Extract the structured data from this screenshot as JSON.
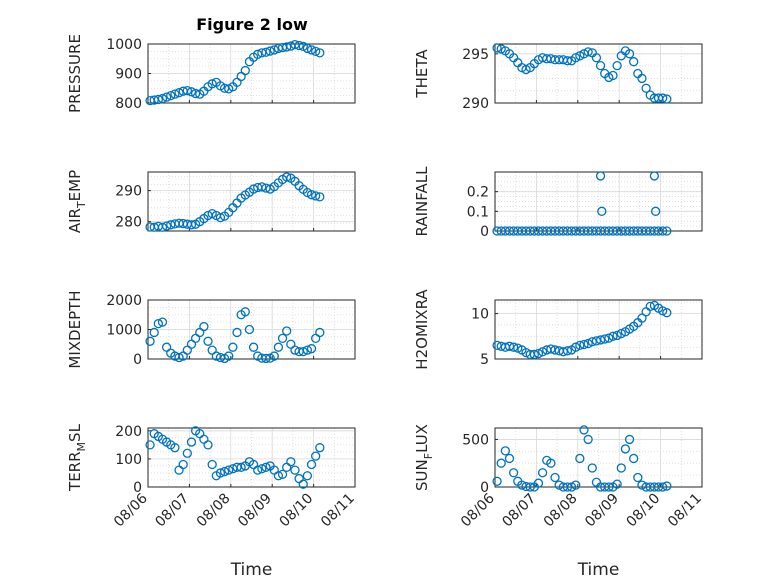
{
  "figure": {
    "title": "Figure 2 low",
    "marker_color": "#0072BD",
    "axis_color": "#262626",
    "grid_color": "#d9d9d9"
  },
  "chart_data": [
    {
      "type": "scatter",
      "title": "Figure 2 low",
      "xlabel": "",
      "ylabel": "PRESSURE",
      "xlim": [
        0,
        5
      ],
      "ylim": [
        800,
        1000
      ],
      "yticks": [
        800,
        900,
        1000
      ],
      "grid": true,
      "x_ticks": [
        0,
        1,
        2,
        3,
        4,
        5
      ],
      "x_tick_labels": [
        "08/06",
        "08/07",
        "08/08",
        "08/09",
        "08/10",
        "08/11"
      ],
      "show_x_tick_labels": false,
      "series": [
        {
          "x": [
            0.05,
            0.15,
            0.25,
            0.35,
            0.45,
            0.55,
            0.65,
            0.75,
            0.85,
            0.95,
            1.05,
            1.15,
            1.25,
            1.35,
            1.45,
            1.55,
            1.65,
            1.75,
            1.85,
            1.95,
            2.05,
            2.15,
            2.25,
            2.35,
            2.45,
            2.55,
            2.65,
            2.75,
            2.85,
            2.95,
            3.05,
            3.15,
            3.25,
            3.35,
            3.45,
            3.55,
            3.65,
            3.75,
            3.85,
            3.95,
            4.05,
            4.15
          ],
          "y": [
            808,
            810,
            812,
            815,
            820,
            825,
            830,
            835,
            840,
            842,
            838,
            832,
            830,
            840,
            855,
            865,
            870,
            858,
            850,
            848,
            855,
            870,
            890,
            910,
            940,
            955,
            965,
            970,
            972,
            976,
            980,
            985,
            988,
            990,
            993,
            998,
            995,
            992,
            985,
            980,
            975,
            970
          ]
        }
      ]
    },
    {
      "type": "scatter",
      "title": "",
      "xlabel": "",
      "ylabel": "THETA",
      "xlim": [
        0,
        5
      ],
      "ylim": [
        290,
        296
      ],
      "yticks": [
        290,
        295
      ],
      "grid": true,
      "x_ticks": [
        0,
        1,
        2,
        3,
        4,
        5
      ],
      "x_tick_labels": [
        "08/06",
        "08/07",
        "08/08",
        "08/09",
        "08/10",
        "08/11"
      ],
      "show_x_tick_labels": false,
      "series": [
        {
          "x": [
            0.05,
            0.15,
            0.25,
            0.35,
            0.45,
            0.55,
            0.65,
            0.75,
            0.85,
            0.95,
            1.05,
            1.15,
            1.25,
            1.35,
            1.45,
            1.55,
            1.65,
            1.75,
            1.85,
            1.95,
            2.05,
            2.15,
            2.25,
            2.35,
            2.45,
            2.55,
            2.65,
            2.75,
            2.85,
            2.95,
            3.05,
            3.15,
            3.25,
            3.35,
            3.45,
            3.55,
            3.65,
            3.75,
            3.85,
            3.95,
            4.05,
            4.15
          ],
          "y": [
            295.6,
            295.5,
            295.3,
            295.0,
            294.6,
            294.1,
            293.6,
            293.4,
            293.6,
            294.0,
            294.4,
            294.6,
            294.5,
            294.5,
            294.4,
            294.4,
            294.4,
            294.3,
            294.3,
            294.6,
            294.8,
            295.0,
            295.2,
            295.1,
            294.6,
            293.8,
            293.0,
            292.6,
            292.8,
            293.8,
            294.8,
            295.3,
            295.0,
            294.2,
            293.0,
            292.5,
            291.5,
            290.8,
            290.5,
            290.5,
            290.5,
            290.4
          ]
        }
      ]
    },
    {
      "type": "scatter",
      "title": "",
      "xlabel": "",
      "ylabel": "AIR_TEMP",
      "xlim": [
        0,
        5
      ],
      "ylim": [
        277,
        296
      ],
      "yticks": [
        280,
        290
      ],
      "grid": true,
      "x_ticks": [
        0,
        1,
        2,
        3,
        4,
        5
      ],
      "x_tick_labels": [
        "08/06",
        "08/07",
        "08/08",
        "08/09",
        "08/10",
        "08/11"
      ],
      "show_x_tick_labels": false,
      "series": [
        {
          "x": [
            0.05,
            0.15,
            0.25,
            0.35,
            0.45,
            0.55,
            0.65,
            0.75,
            0.85,
            0.95,
            1.05,
            1.15,
            1.25,
            1.35,
            1.45,
            1.55,
            1.65,
            1.75,
            1.85,
            1.95,
            2.05,
            2.15,
            2.25,
            2.35,
            2.45,
            2.55,
            2.65,
            2.75,
            2.85,
            2.95,
            3.05,
            3.15,
            3.25,
            3.35,
            3.45,
            3.55,
            3.65,
            3.75,
            3.85,
            3.95,
            4.05,
            4.15
          ],
          "y": [
            278.3,
            278.2,
            278.5,
            278.2,
            278.6,
            279.0,
            279.3,
            279.5,
            279.4,
            279.2,
            279.0,
            279.2,
            280.0,
            281.0,
            282.0,
            282.6,
            282.0,
            281.3,
            281.8,
            283.0,
            284.5,
            286.0,
            287.6,
            288.6,
            289.5,
            290.5,
            291.0,
            291.2,
            290.8,
            290.5,
            291.3,
            292.5,
            293.6,
            294.4,
            294.0,
            293.0,
            291.6,
            290.4,
            289.4,
            288.7,
            288.3,
            288.0
          ]
        }
      ]
    },
    {
      "type": "scatter",
      "title": "",
      "xlabel": "",
      "ylabel": "RAINFALL",
      "xlim": [
        0,
        5
      ],
      "ylim": [
        0,
        0.3
      ],
      "yticks": [
        0,
        0.1,
        0.2
      ],
      "grid": true,
      "x_ticks": [
        0,
        1,
        2,
        3,
        4,
        5
      ],
      "x_tick_labels": [
        "08/06",
        "08/07",
        "08/08",
        "08/09",
        "08/10",
        "08/11"
      ],
      "show_x_tick_labels": false,
      "series": [
        {
          "x": [
            0.05,
            0.15,
            0.25,
            0.35,
            0.45,
            0.55,
            0.65,
            0.75,
            0.85,
            0.95,
            1.05,
            1.15,
            1.25,
            1.35,
            1.45,
            1.55,
            1.65,
            1.75,
            1.85,
            1.95,
            2.05,
            2.15,
            2.25,
            2.35,
            2.45,
            2.55,
            2.65,
            2.75,
            2.85,
            2.95,
            3.05,
            3.15,
            3.25,
            3.35,
            3.45,
            3.55,
            3.65,
            3.75,
            3.85,
            3.95,
            4.05,
            4.15,
            2.55,
            2.58,
            3.85,
            3.88
          ],
          "y": [
            0,
            0,
            0,
            0,
            0,
            0,
            0,
            0,
            0,
            0,
            0,
            0,
            0,
            0,
            0,
            0,
            0,
            0,
            0,
            0,
            0,
            0,
            0,
            0,
            0,
            0,
            0,
            0,
            0,
            0,
            0,
            0,
            0,
            0,
            0,
            0,
            0,
            0,
            0,
            0,
            0,
            0,
            0.28,
            0.1,
            0.28,
            0.1
          ]
        }
      ]
    },
    {
      "type": "scatter",
      "title": "",
      "xlabel": "",
      "ylabel": "MIXDEPTH",
      "xlim": [
        0,
        5
      ],
      "ylim": [
        0,
        2000
      ],
      "yticks": [
        0,
        1000,
        2000
      ],
      "grid": true,
      "x_ticks": [
        0,
        1,
        2,
        3,
        4,
        5
      ],
      "x_tick_labels": [
        "08/06",
        "08/07",
        "08/08",
        "08/09",
        "08/10",
        "08/11"
      ],
      "show_x_tick_labels": false,
      "series": [
        {
          "x": [
            0.05,
            0.15,
            0.25,
            0.35,
            0.45,
            0.55,
            0.65,
            0.75,
            0.85,
            0.95,
            1.05,
            1.15,
            1.25,
            1.35,
            1.45,
            1.55,
            1.65,
            1.75,
            1.85,
            1.95,
            2.05,
            2.15,
            2.25,
            2.35,
            2.45,
            2.55,
            2.65,
            2.75,
            2.85,
            2.95,
            3.05,
            3.15,
            3.25,
            3.35,
            3.45,
            3.55,
            3.65,
            3.75,
            3.85,
            3.95,
            4.05,
            4.15
          ],
          "y": [
            600,
            900,
            1200,
            1250,
            400,
            200,
            100,
            50,
            100,
            300,
            500,
            700,
            900,
            1100,
            600,
            300,
            100,
            50,
            20,
            100,
            400,
            900,
            1500,
            1600,
            1000,
            400,
            100,
            30,
            20,
            30,
            100,
            400,
            700,
            950,
            500,
            300,
            250,
            250,
            300,
            350,
            700,
            900
          ]
        }
      ]
    },
    {
      "type": "scatter",
      "title": "",
      "xlabel": "",
      "ylabel": "H2OMIXRA",
      "xlim": [
        0,
        5
      ],
      "ylim": [
        5,
        11.5
      ],
      "yticks": [
        5,
        10
      ],
      "grid": true,
      "x_ticks": [
        0,
        1,
        2,
        3,
        4,
        5
      ],
      "x_tick_labels": [
        "08/06",
        "08/07",
        "08/08",
        "08/09",
        "08/10",
        "08/11"
      ],
      "show_x_tick_labels": false,
      "series": [
        {
          "x": [
            0.05,
            0.15,
            0.25,
            0.35,
            0.45,
            0.55,
            0.65,
            0.75,
            0.85,
            0.95,
            1.05,
            1.15,
            1.25,
            1.35,
            1.45,
            1.55,
            1.65,
            1.75,
            1.85,
            1.95,
            2.05,
            2.15,
            2.25,
            2.35,
            2.45,
            2.55,
            2.65,
            2.75,
            2.85,
            2.95,
            3.05,
            3.15,
            3.25,
            3.35,
            3.45,
            3.55,
            3.65,
            3.75,
            3.85,
            3.95,
            4.05,
            4.15
          ],
          "y": [
            6.5,
            6.4,
            6.3,
            6.4,
            6.3,
            6.2,
            6.0,
            5.7,
            5.5,
            5.5,
            5.6,
            5.8,
            6.0,
            6.1,
            6.0,
            5.9,
            5.8,
            5.9,
            6.0,
            6.3,
            6.5,
            6.6,
            6.7,
            6.9,
            7.0,
            7.1,
            7.2,
            7.3,
            7.5,
            7.6,
            7.8,
            8.0,
            8.3,
            8.6,
            9.0,
            9.5,
            10.2,
            10.8,
            10.9,
            10.6,
            10.3,
            10.1
          ]
        }
      ]
    },
    {
      "type": "scatter",
      "title": "",
      "xlabel": "Time",
      "ylabel": "TERR_MSL",
      "xlim": [
        0,
        5
      ],
      "ylim": [
        0,
        210
      ],
      "yticks": [
        0,
        100,
        200
      ],
      "grid": true,
      "x_ticks": [
        0,
        1,
        2,
        3,
        4,
        5
      ],
      "x_tick_labels": [
        "08/06",
        "08/07",
        "08/08",
        "08/09",
        "08/10",
        "08/11"
      ],
      "show_x_tick_labels": true,
      "series": [
        {
          "x": [
            0.05,
            0.15,
            0.25,
            0.35,
            0.45,
            0.55,
            0.65,
            0.75,
            0.85,
            0.95,
            1.05,
            1.15,
            1.25,
            1.35,
            1.45,
            1.55,
            1.65,
            1.75,
            1.85,
            1.95,
            2.05,
            2.15,
            2.25,
            2.35,
            2.45,
            2.55,
            2.65,
            2.75,
            2.85,
            2.95,
            3.05,
            3.15,
            3.25,
            3.35,
            3.45,
            3.55,
            3.65,
            3.75,
            3.85,
            3.95,
            4.05,
            4.15
          ],
          "y": [
            150,
            190,
            180,
            170,
            160,
            150,
            140,
            60,
            80,
            120,
            160,
            200,
            190,
            170,
            150,
            80,
            40,
            50,
            55,
            60,
            65,
            70,
            70,
            75,
            90,
            80,
            60,
            65,
            70,
            75,
            60,
            40,
            45,
            70,
            90,
            60,
            30,
            10,
            40,
            80,
            110,
            140
          ]
        }
      ]
    },
    {
      "type": "scatter",
      "title": "",
      "xlabel": "Time",
      "ylabel": "SUN_FLUX",
      "xlim": [
        0,
        5
      ],
      "ylim": [
        0,
        620
      ],
      "yticks": [
        0,
        500
      ],
      "grid": true,
      "x_ticks": [
        0,
        1,
        2,
        3,
        4,
        5
      ],
      "x_tick_labels": [
        "08/06",
        "08/07",
        "08/08",
        "08/09",
        "08/10",
        "08/11"
      ],
      "show_x_tick_labels": true,
      "series": [
        {
          "x": [
            0.05,
            0.15,
            0.25,
            0.35,
            0.45,
            0.55,
            0.65,
            0.75,
            0.85,
            0.95,
            1.05,
            1.15,
            1.25,
            1.35,
            1.45,
            1.55,
            1.65,
            1.75,
            1.85,
            1.95,
            2.05,
            2.15,
            2.25,
            2.35,
            2.45,
            2.55,
            2.65,
            2.75,
            2.85,
            2.95,
            3.05,
            3.15,
            3.25,
            3.35,
            3.45,
            3.55,
            3.65,
            3.75,
            3.85,
            3.95,
            4.05,
            4.15
          ],
          "y": [
            60,
            250,
            380,
            300,
            150,
            60,
            20,
            5,
            0,
            0,
            40,
            150,
            280,
            250,
            100,
            20,
            0,
            0,
            0,
            20,
            300,
            600,
            500,
            200,
            50,
            0,
            0,
            0,
            0,
            30,
            200,
            400,
            500,
            300,
            100,
            20,
            0,
            0,
            0,
            0,
            0,
            10
          ]
        }
      ]
    }
  ]
}
